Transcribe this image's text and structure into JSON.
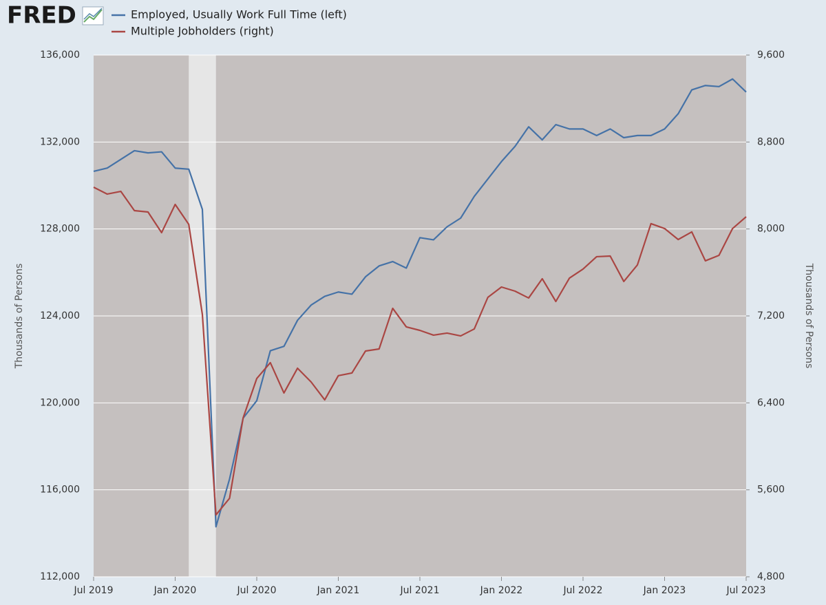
{
  "chart_data": {
    "type": "line",
    "logo": "FRED",
    "y_label": "Thousands of Persons",
    "y2_label": "Thousands of Persons",
    "x": [
      "2019-07",
      "2019-08",
      "2019-09",
      "2019-10",
      "2019-11",
      "2019-12",
      "2020-01",
      "2020-02",
      "2020-03",
      "2020-04",
      "2020-05",
      "2020-06",
      "2020-07",
      "2020-08",
      "2020-09",
      "2020-10",
      "2020-11",
      "2020-12",
      "2021-01",
      "2021-02",
      "2021-03",
      "2021-04",
      "2021-05",
      "2021-06",
      "2021-07",
      "2021-08",
      "2021-09",
      "2021-10",
      "2021-11",
      "2021-12",
      "2022-01",
      "2022-02",
      "2022-03",
      "2022-04",
      "2022-05",
      "2022-06",
      "2022-07",
      "2022-08",
      "2022-09",
      "2022-10",
      "2022-11",
      "2022-12",
      "2023-01",
      "2023-02",
      "2023-03",
      "2023-04",
      "2023-05",
      "2023-06",
      "2023-07"
    ],
    "xticks": [
      {
        "value": "2019-07",
        "label": "Jul 2019"
      },
      {
        "value": "2020-01",
        "label": "Jan 2020"
      },
      {
        "value": "2020-07",
        "label": "Jul 2020"
      },
      {
        "value": "2021-01",
        "label": "Jan 2021"
      },
      {
        "value": "2021-07",
        "label": "Jul 2021"
      },
      {
        "value": "2022-01",
        "label": "Jan 2022"
      },
      {
        "value": "2022-07",
        "label": "Jul 2022"
      },
      {
        "value": "2023-01",
        "label": "Jan 2023"
      },
      {
        "value": "2023-07",
        "label": "Jul 2023"
      }
    ],
    "recessions": [
      {
        "start": "2020-02",
        "end": "2020-04"
      }
    ],
    "ylim": [
      112000,
      136000
    ],
    "yticks": [
      {
        "value": 112000,
        "label": "112,000"
      },
      {
        "value": 116000,
        "label": "116,000"
      },
      {
        "value": 120000,
        "label": "120,000"
      },
      {
        "value": 124000,
        "label": "124,000"
      },
      {
        "value": 128000,
        "label": "128,000"
      },
      {
        "value": 132000,
        "label": "132,000"
      },
      {
        "value": 136000,
        "label": "136,000"
      }
    ],
    "y2lim": [
      4800,
      9600
    ],
    "y2ticks": [
      {
        "value": 4800,
        "label": "4,800"
      },
      {
        "value": 5600,
        "label": "5,600"
      },
      {
        "value": 6400,
        "label": "6,400"
      },
      {
        "value": 7200,
        "label": "7,200"
      },
      {
        "value": 8000,
        "label": "8,000"
      },
      {
        "value": 8800,
        "label": "8,800"
      },
      {
        "value": 9600,
        "label": "9,600"
      }
    ],
    "grid": true,
    "series": [
      {
        "name": "Employed, Usually Work Full Time (left)",
        "color": "#4572a7",
        "axis": "y",
        "values": [
          130650,
          130800,
          131200,
          131600,
          131500,
          131550,
          130800,
          130750,
          128900,
          114300,
          116500,
          119300,
          120100,
          122400,
          122600,
          123800,
          124500,
          124900,
          125100,
          125000,
          125800,
          126300,
          126500,
          126200,
          127600,
          127500,
          128100,
          128500,
          129500,
          130300,
          131100,
          131800,
          132700,
          132100,
          132800,
          132600,
          132600,
          132300,
          132600,
          132200,
          132300,
          132300,
          132600,
          133300,
          134400,
          134600,
          134550,
          134900,
          134300
        ]
      },
      {
        "name": "Multiple Jobholders (right)",
        "color": "#aa4643",
        "axis": "y2",
        "values": [
          8384,
          8321,
          8346,
          8169,
          8156,
          7966,
          8226,
          8042,
          7213,
          5370,
          5522,
          6263,
          6624,
          6770,
          6491,
          6719,
          6592,
          6428,
          6650,
          6675,
          6877,
          6896,
          7270,
          7099,
          7067,
          7023,
          7042,
          7016,
          7080,
          7371,
          7466,
          7428,
          7365,
          7542,
          7333,
          7548,
          7631,
          7745,
          7751,
          7517,
          7669,
          8049,
          8004,
          7903,
          7973,
          7707,
          7757,
          8004,
          8112
        ]
      }
    ]
  }
}
